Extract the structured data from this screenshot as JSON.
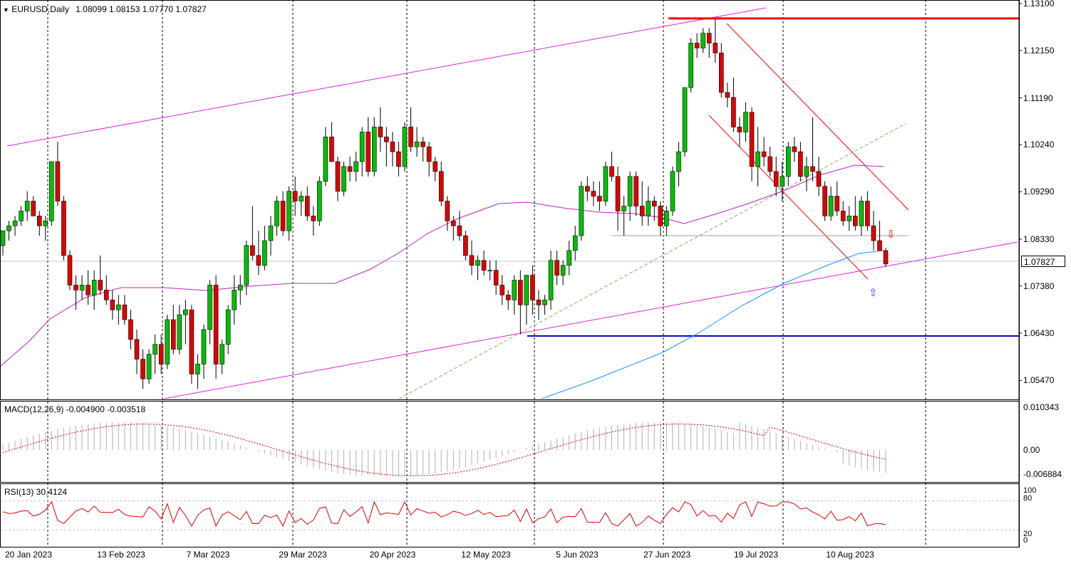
{
  "header": {
    "symbol_label": "EURUSD,Daily",
    "ohlc": "1.08099 1.08153 1.07770 1.07827"
  },
  "price_axis": {
    "labels": [
      "1.13100",
      "1.12150",
      "1.11190",
      "1.10240",
      "1.09290",
      "1.08330",
      "1.07380",
      "1.06430",
      "1.05470"
    ],
    "last_price": "1.07827"
  },
  "date_axis": {
    "labels": [
      "20 Jan 2023",
      "13 Feb 2023",
      "7 Mar 2023",
      "29 Mar 2023",
      "20 Apr 2023",
      "12 May 2023",
      "5 Jun 2023",
      "27 Jun 2023",
      "19 Jul 2023",
      "10 Aug 2023"
    ]
  },
  "macd": {
    "label": "MACD(12,26,9) -0.004900 -0.003518",
    "scale_labels": [
      "0.010343",
      "0.00",
      "-0.006884"
    ]
  },
  "rsi": {
    "label": "RSI(13) 30.4124",
    "scale_labels": [
      "100",
      "80",
      "20",
      "0"
    ]
  },
  "colors": {
    "bull": "#00c000",
    "bear": "#e00000",
    "channel": "#e020e0",
    "resistance": "#ff0000",
    "support": "#0000c0",
    "ma_slow": "#1e90ff",
    "ma_fast": "#c020c0"
  },
  "chart_data": {
    "type": "candlestick",
    "title": "EURUSD,Daily",
    "ylim": [
      1.051,
      1.131
    ],
    "resistance_level": 1.128,
    "support_level": 1.0637,
    "candles": [
      [
        1.082,
        1.085,
        1.08,
        1.085
      ],
      [
        1.085,
        1.087,
        1.083,
        1.086
      ],
      [
        1.086,
        1.088,
        1.084,
        1.087
      ],
      [
        1.087,
        1.09,
        1.086,
        1.089
      ],
      [
        1.089,
        1.093,
        1.087,
        1.091
      ],
      [
        1.091,
        1.092,
        1.088,
        1.088
      ],
      [
        1.088,
        1.089,
        1.084,
        1.086
      ],
      [
        1.086,
        1.088,
        1.083,
        1.087
      ],
      [
        1.087,
        1.099,
        1.086,
        1.099
      ],
      [
        1.099,
        1.103,
        1.09,
        1.091
      ],
      [
        1.091,
        1.092,
        1.079,
        1.08
      ],
      [
        1.08,
        1.081,
        1.073,
        1.074
      ],
      [
        1.074,
        1.076,
        1.069,
        1.073
      ],
      [
        1.073,
        1.076,
        1.071,
        1.074
      ],
      [
        1.074,
        1.077,
        1.07,
        1.072
      ],
      [
        1.072,
        1.077,
        1.069,
        1.075
      ],
      [
        1.075,
        1.08,
        1.072,
        1.073
      ],
      [
        1.073,
        1.076,
        1.07,
        1.071
      ],
      [
        1.071,
        1.073,
        1.067,
        1.069
      ],
      [
        1.069,
        1.072,
        1.066,
        1.07
      ],
      [
        1.07,
        1.072,
        1.066,
        1.067
      ],
      [
        1.067,
        1.069,
        1.061,
        1.063
      ],
      [
        1.063,
        1.065,
        1.056,
        1.059
      ],
      [
        1.059,
        1.061,
        1.053,
        1.055
      ],
      [
        1.055,
        1.061,
        1.054,
        1.06
      ],
      [
        1.06,
        1.064,
        1.056,
        1.062
      ],
      [
        1.062,
        1.064,
        1.056,
        1.058
      ],
      [
        1.058,
        1.068,
        1.057,
        1.067
      ],
      [
        1.067,
        1.07,
        1.06,
        1.061
      ],
      [
        1.061,
        1.07,
        1.06,
        1.068
      ],
      [
        1.068,
        1.071,
        1.062,
        1.069
      ],
      [
        1.069,
        1.07,
        1.054,
        1.056
      ],
      [
        1.056,
        1.06,
        1.053,
        1.058
      ],
      [
        1.058,
        1.066,
        1.055,
        1.065
      ],
      [
        1.065,
        1.075,
        1.062,
        1.074
      ],
      [
        1.074,
        1.076,
        1.055,
        1.058
      ],
      [
        1.058,
        1.063,
        1.056,
        1.062
      ],
      [
        1.062,
        1.07,
        1.06,
        1.069
      ],
      [
        1.069,
        1.076,
        1.066,
        1.073
      ],
      [
        1.073,
        1.076,
        1.07,
        1.074
      ],
      [
        1.074,
        1.083,
        1.072,
        1.082
      ],
      [
        1.082,
        1.09,
        1.079,
        1.08
      ],
      [
        1.08,
        1.085,
        1.076,
        1.078
      ],
      [
        1.078,
        1.086,
        1.077,
        1.083
      ],
      [
        1.083,
        1.088,
        1.08,
        1.086
      ],
      [
        1.086,
        1.092,
        1.084,
        1.091
      ],
      [
        1.091,
        1.093,
        1.084,
        1.085
      ],
      [
        1.085,
        1.094,
        1.083,
        1.093
      ],
      [
        1.093,
        1.096,
        1.088,
        1.091
      ],
      [
        1.091,
        1.093,
        1.088,
        1.092
      ],
      [
        1.092,
        1.094,
        1.087,
        1.088
      ],
      [
        1.088,
        1.09,
        1.084,
        1.087
      ],
      [
        1.087,
        1.096,
        1.086,
        1.095
      ],
      [
        1.095,
        1.106,
        1.094,
        1.104
      ],
      [
        1.104,
        1.107,
        1.099,
        1.099
      ],
      [
        1.099,
        1.1,
        1.091,
        1.093
      ],
      [
        1.093,
        1.099,
        1.092,
        1.098
      ],
      [
        1.098,
        1.1,
        1.095,
        1.097
      ],
      [
        1.097,
        1.101,
        1.095,
        1.099
      ],
      [
        1.099,
        1.106,
        1.096,
        1.105
      ],
      [
        1.105,
        1.108,
        1.096,
        1.097
      ],
      [
        1.097,
        1.108,
        1.096,
        1.106
      ],
      [
        1.106,
        1.11,
        1.101,
        1.104
      ],
      [
        1.104,
        1.106,
        1.098,
        1.103
      ],
      [
        1.103,
        1.105,
        1.098,
        1.101
      ],
      [
        1.101,
        1.103,
        1.096,
        1.098
      ],
      [
        1.098,
        1.107,
        1.097,
        1.106
      ],
      [
        1.106,
        1.11,
        1.101,
        1.102
      ],
      [
        1.102,
        1.106,
        1.1,
        1.103
      ],
      [
        1.103,
        1.104,
        1.099,
        1.102
      ],
      [
        1.102,
        1.103,
        1.096,
        1.099
      ],
      [
        1.099,
        1.1,
        1.095,
        1.097
      ],
      [
        1.097,
        1.099,
        1.09,
        1.091
      ],
      [
        1.091,
        1.092,
        1.085,
        1.087
      ],
      [
        1.087,
        1.088,
        1.083,
        1.086
      ],
      [
        1.086,
        1.089,
        1.083,
        1.084
      ],
      [
        1.084,
        1.085,
        1.079,
        1.08
      ],
      [
        1.08,
        1.083,
        1.076,
        1.078
      ],
      [
        1.078,
        1.08,
        1.075,
        1.079
      ],
      [
        1.079,
        1.081,
        1.076,
        1.077
      ],
      [
        1.077,
        1.079,
        1.075,
        1.077
      ],
      [
        1.077,
        1.079,
        1.072,
        1.074
      ],
      [
        1.074,
        1.076,
        1.07,
        1.072
      ],
      [
        1.072,
        1.073,
        1.069,
        1.071
      ],
      [
        1.071,
        1.076,
        1.068,
        1.075
      ],
      [
        1.075,
        1.077,
        1.064,
        1.07
      ],
      [
        1.07,
        1.076,
        1.066,
        1.076
      ],
      [
        1.076,
        1.078,
        1.068,
        1.071
      ],
      [
        1.071,
        1.073,
        1.067,
        1.07
      ],
      [
        1.07,
        1.072,
        1.068,
        1.071
      ],
      [
        1.071,
        1.081,
        1.069,
        1.079
      ],
      [
        1.079,
        1.081,
        1.074,
        1.076
      ],
      [
        1.076,
        1.079,
        1.074,
        1.078
      ],
      [
        1.078,
        1.083,
        1.076,
        1.081
      ],
      [
        1.081,
        1.086,
        1.079,
        1.084
      ],
      [
        1.084,
        1.095,
        1.083,
        1.094
      ],
      [
        1.094,
        1.096,
        1.091,
        1.093
      ],
      [
        1.093,
        1.095,
        1.09,
        1.092
      ],
      [
        1.092,
        1.095,
        1.089,
        1.091
      ],
      [
        1.091,
        1.099,
        1.09,
        1.098
      ],
      [
        1.098,
        1.101,
        1.095,
        1.096
      ],
      [
        1.096,
        1.098,
        1.085,
        1.089
      ],
      [
        1.089,
        1.092,
        1.084,
        1.09
      ],
      [
        1.09,
        1.097,
        1.087,
        1.096
      ],
      [
        1.096,
        1.097,
        1.088,
        1.09
      ],
      [
        1.09,
        1.095,
        1.086,
        1.088
      ],
      [
        1.088,
        1.094,
        1.086,
        1.091
      ],
      [
        1.091,
        1.092,
        1.087,
        1.09
      ],
      [
        1.09,
        1.091,
        1.084,
        1.086
      ],
      [
        1.086,
        1.09,
        1.084,
        1.089
      ],
      [
        1.089,
        1.098,
        1.088,
        1.097
      ],
      [
        1.097,
        1.103,
        1.094,
        1.101
      ],
      [
        1.101,
        1.114,
        1.1,
        1.114
      ],
      [
        1.114,
        1.124,
        1.113,
        1.123
      ],
      [
        1.123,
        1.125,
        1.12,
        1.122
      ],
      [
        1.122,
        1.126,
        1.121,
        1.125
      ],
      [
        1.125,
        1.126,
        1.12,
        1.123
      ],
      [
        1.123,
        1.128,
        1.119,
        1.121
      ],
      [
        1.121,
        1.123,
        1.112,
        1.113
      ],
      [
        1.113,
        1.115,
        1.11,
        1.112
      ],
      [
        1.112,
        1.116,
        1.105,
        1.106
      ],
      [
        1.106,
        1.108,
        1.102,
        1.105
      ],
      [
        1.105,
        1.111,
        1.103,
        1.109
      ],
      [
        1.109,
        1.11,
        1.095,
        1.098
      ],
      [
        1.098,
        1.106,
        1.094,
        1.101
      ],
      [
        1.101,
        1.104,
        1.098,
        1.1
      ],
      [
        1.1,
        1.102,
        1.096,
        1.097
      ],
      [
        1.097,
        1.1,
        1.092,
        1.094
      ],
      [
        1.094,
        1.099,
        1.091,
        1.096
      ],
      [
        1.096,
        1.103,
        1.094,
        1.102
      ],
      [
        1.102,
        1.104,
        1.099,
        1.101
      ],
      [
        1.101,
        1.103,
        1.095,
        1.096
      ],
      [
        1.096,
        1.1,
        1.093,
        1.098
      ],
      [
        1.098,
        1.108,
        1.095,
        1.097
      ],
      [
        1.097,
        1.1,
        1.092,
        1.094
      ],
      [
        1.094,
        1.095,
        1.087,
        1.088
      ],
      [
        1.088,
        1.094,
        1.087,
        1.092
      ],
      [
        1.092,
        1.095,
        1.088,
        1.089
      ],
      [
        1.089,
        1.091,
        1.086,
        1.087
      ],
      [
        1.087,
        1.09,
        1.085,
        1.088
      ],
      [
        1.088,
        1.092,
        1.085,
        1.086
      ],
      [
        1.086,
        1.092,
        1.084,
        1.091
      ],
      [
        1.091,
        1.093,
        1.085,
        1.086
      ],
      [
        1.086,
        1.089,
        1.081,
        1.083
      ],
      [
        1.083,
        1.087,
        1.081,
        1.081
      ],
      [
        1.08099,
        1.08153,
        1.0777,
        1.07827
      ]
    ]
  }
}
